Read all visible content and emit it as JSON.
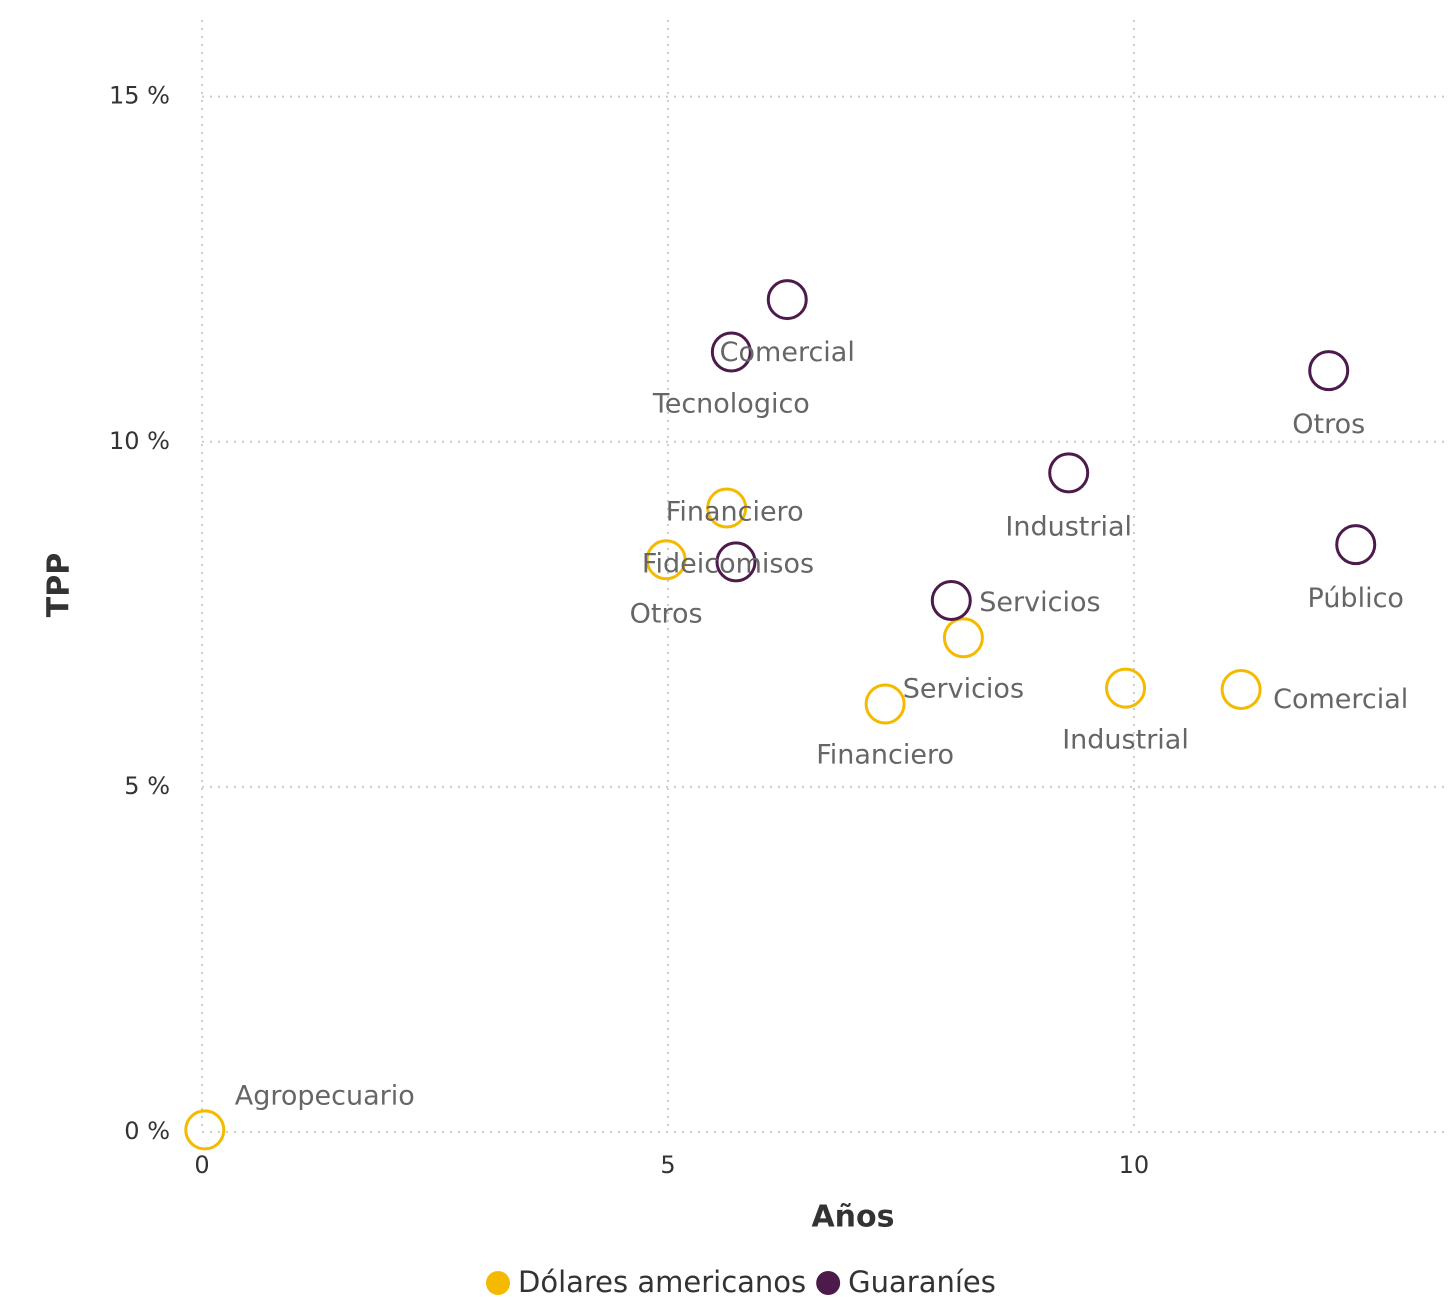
{
  "chart_data": {
    "type": "scatter",
    "xlabel": "Años",
    "ylabel": "TPP",
    "xlim": [
      0,
      13.37
    ],
    "xticks": [
      0,
      5,
      10
    ],
    "ylim": [
      0,
      16.4
    ],
    "yticks": [
      {
        "value": 0,
        "label": "0 %"
      },
      {
        "value": 5,
        "label": "5 %"
      },
      {
        "value": 10,
        "label": "10 %"
      },
      {
        "value": 15,
        "label": "15 %"
      }
    ],
    "grid": true,
    "legend": "bottom",
    "series": [
      {
        "name": "Dólares americanos",
        "color": "#F5BA00",
        "labels": [
          "Agropecuario",
          "Financiero",
          "Otros",
          "Financiero",
          "Servicios",
          "Industrial",
          "Comercial"
        ],
        "x": [
          0.03,
          5.63,
          4.98,
          7.33,
          8.17,
          9.91,
          11.15
        ],
        "values": [
          0.03,
          9.04,
          8.29,
          6.2,
          7.16,
          6.43,
          6.41
        ]
      },
      {
        "name": "Guaraníes",
        "color": "#4D1B4B",
        "labels": [
          "Comercial",
          "Tecnologico",
          "Fideicomisos",
          "Industrial",
          "Servicios",
          "Otros",
          "Público"
        ],
        "x": [
          6.28,
          5.68,
          5.73,
          9.3,
          8.04,
          12.09,
          12.38
        ],
        "values": [
          12.06,
          11.3,
          8.26,
          9.55,
          7.7,
          11.03,
          8.51
        ]
      }
    ]
  }
}
